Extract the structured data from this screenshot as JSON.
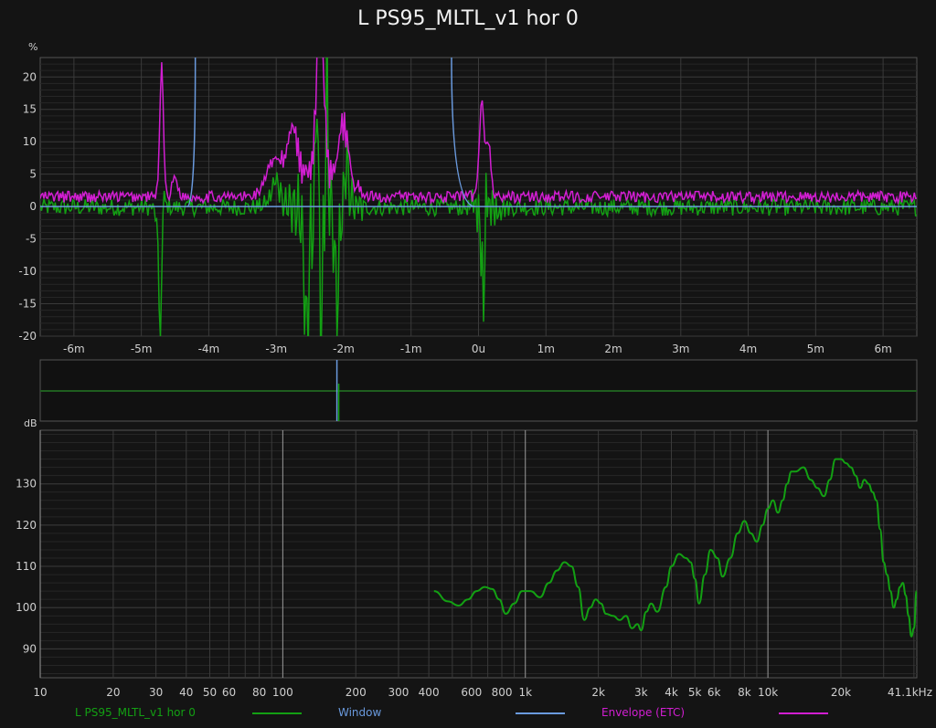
{
  "title": "L PS95_MLTL_v1 hor 0",
  "colors": {
    "background": "#141414",
    "plot_bg": "#141414",
    "grid": "#3a3a3a",
    "grid_minor": "#262626",
    "impulse": "#13a013",
    "window": "#6a9ade",
    "envelope": "#d21ed2",
    "freq_response": "#13a013"
  },
  "legend": [
    {
      "label": "L PS95_MLTL_v1 hor 0",
      "color": "#13a013"
    },
    {
      "label": "Window",
      "color": "#6a9ade"
    },
    {
      "label": "Envelope (ETC)",
      "color": "#d21ed2"
    }
  ],
  "chart_data": [
    {
      "type": "line",
      "name": "impulse",
      "y_unit": "%",
      "xlim": [
        -6.5,
        6.5
      ],
      "ylim": [
        -20,
        23
      ],
      "x_ticks": [
        -6,
        -5,
        -4,
        -3,
        -2,
        -1,
        0,
        1,
        2,
        3,
        4,
        5,
        6
      ],
      "x_tick_labels": [
        "-6m",
        "-5m",
        "-4m",
        "-3m",
        "-2m",
        "-1m",
        "0u",
        "1m",
        "2m",
        "3m",
        "4m",
        "5m",
        "6m"
      ],
      "y_ticks": [
        20,
        15,
        10,
        5,
        0,
        -5,
        -10,
        -15,
        -20
      ],
      "grid": true,
      "series": [
        {
          "name": "L PS95_MLTL_v1 hor 0",
          "peaks": [
            {
              "x": -4.72,
              "y": -20,
              "w": 0.05
            },
            {
              "x": -4.67,
              "y": 4,
              "w": 0.05
            },
            {
              "x": -3.0,
              "y": 4,
              "w": 0.15
            },
            {
              "x": -2.55,
              "y": -18,
              "w": 0.08
            },
            {
              "x": -2.4,
              "y": 23,
              "w": 0.03
            },
            {
              "x": -2.33,
              "y": -20,
              "w": 0.04
            },
            {
              "x": -2.25,
              "y": 22,
              "w": 0.03
            },
            {
              "x": -2.1,
              "y": -15,
              "w": 0.06
            },
            {
              "x": -1.95,
              "y": 7,
              "w": 0.06
            },
            {
              "x": 0.05,
              "y": -7,
              "w": 0.04
            },
            {
              "x": 0.08,
              "y": -14,
              "w": 0.03
            },
            {
              "x": 0.12,
              "y": 4,
              "w": 0.04
            }
          ]
        },
        {
          "name": "Window",
          "points": [
            [
              -4.2,
              23
            ],
            [
              -4.32,
              0
            ],
            [
              -0.4,
              23
            ],
            [
              -0.05,
              0
            ]
          ]
        },
        {
          "name": "Envelope (ETC)",
          "peaks": [
            {
              "x": -4.7,
              "y": 20,
              "w": 0.04
            },
            {
              "x": -4.5,
              "y": 3,
              "w": 0.06
            },
            {
              "x": -3.0,
              "y": 5,
              "w": 0.2
            },
            {
              "x": -2.75,
              "y": 8,
              "w": 0.1
            },
            {
              "x": -2.35,
              "y": 23,
              "w": 0.08
            },
            {
              "x": -2.0,
              "y": 9,
              "w": 0.1
            },
            {
              "x": 0.05,
              "y": 15,
              "w": 0.05
            },
            {
              "x": 0.15,
              "y": 8,
              "w": 0.05
            }
          ]
        }
      ]
    },
    {
      "type": "line",
      "name": "overview",
      "xlim": [
        -6.5,
        6.5
      ],
      "grid": false,
      "series": [
        {
          "name": "Window",
          "points": [
            [
              -2.1,
              1
            ],
            [
              -2.12,
              0
            ]
          ]
        }
      ]
    },
    {
      "type": "line",
      "name": "frequency_response",
      "y_unit": "dB",
      "xscale": "log",
      "xlim": [
        10,
        41100
      ],
      "ylim": [
        83,
        143
      ],
      "x_ticks": [
        10,
        20,
        30,
        40,
        50,
        60,
        80,
        100,
        200,
        300,
        400,
        600,
        800,
        1000,
        2000,
        3000,
        4000,
        5000,
        6000,
        8000,
        10000,
        20000,
        41100
      ],
      "x_tick_labels": [
        "10",
        "20",
        "30",
        "40",
        "50",
        "60",
        "80",
        "100",
        "200",
        "300",
        "400",
        "600",
        "800",
        "1k",
        "2k",
        "3k",
        "4k",
        "5k",
        "6k",
        "8k",
        "10k",
        "20k",
        "41.1kHz"
      ],
      "y_ticks": [
        130,
        120,
        110,
        100,
        90
      ],
      "grid": true,
      "series": [
        {
          "name": "L PS95_MLTL_v1 hor 0",
          "x": [
            420,
            480,
            530,
            580,
            630,
            680,
            730,
            780,
            830,
            900,
            970,
            1050,
            1150,
            1250,
            1350,
            1450,
            1550,
            1650,
            1750,
            1850,
            1950,
            2050,
            2150,
            2300,
            2450,
            2600,
            2750,
            2900,
            3000,
            3150,
            3300,
            3500,
            3800,
            4000,
            4300,
            4600,
            4800,
            5000,
            5200,
            5500,
            5800,
            6200,
            6500,
            7000,
            7500,
            8000,
            8500,
            9000,
            9500,
            10000,
            10500,
            11000,
            11500,
            12000,
            12500,
            13000,
            14000,
            15000,
            16000,
            17000,
            18000,
            19000,
            20000,
            21000,
            22000,
            23000,
            24000,
            25000,
            26000,
            27000,
            28000,
            29000,
            30000,
            31000,
            32000,
            33000,
            34000,
            35000,
            36000,
            37000,
            38000,
            39000,
            40000,
            41000
          ],
          "y": [
            104,
            101.5,
            100.5,
            102,
            104,
            105,
            104.5,
            102,
            98.5,
            101,
            104,
            104,
            102.5,
            106,
            109,
            111,
            110,
            105,
            97,
            100,
            102,
            101,
            98.5,
            98,
            97,
            98,
            95,
            96,
            94.5,
            99,
            101,
            99,
            105,
            110,
            113,
            112,
            111,
            107,
            101,
            108,
            114,
            112,
            107.5,
            112,
            118,
            121,
            118,
            116,
            120,
            124,
            126,
            123,
            126,
            130,
            133,
            133,
            134,
            131,
            129,
            127,
            131,
            136,
            136,
            135,
            134,
            132,
            129,
            131,
            130,
            128,
            126,
            119,
            111,
            108,
            104,
            100,
            102,
            105,
            106,
            103,
            98,
            93,
            95,
            104
          ]
        }
      ]
    }
  ]
}
